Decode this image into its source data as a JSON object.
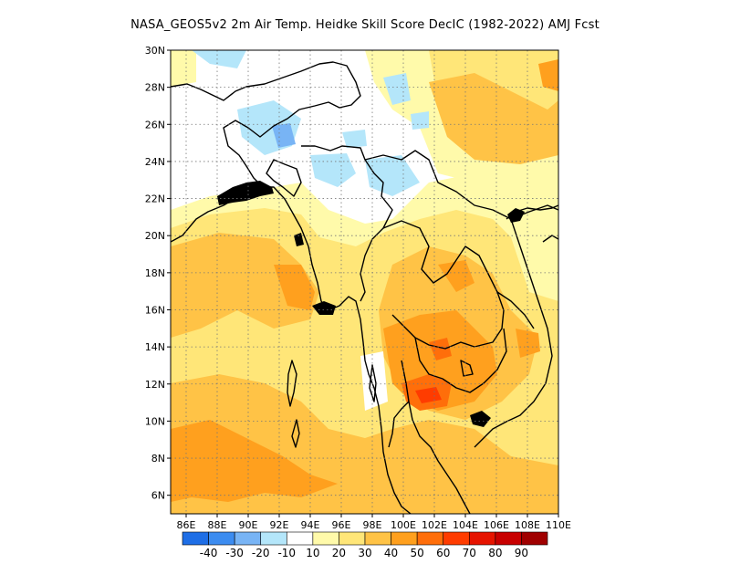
{
  "title": "NASA_GEOS5v2  2m Air Temp. Heidke Skill Score DecIC (1982-2022) AMJ Fcst",
  "map": {
    "lat_labels": [
      "30N",
      "28N",
      "26N",
      "24N",
      "22N",
      "20N",
      "18N",
      "16N",
      "14N",
      "12N",
      "10N",
      "8N",
      "6N"
    ],
    "lon_labels": [
      "86E",
      "88E",
      "90E",
      "92E",
      "94E",
      "96E",
      "98E",
      "100E",
      "102E",
      "104E",
      "106E",
      "108E",
      "110E"
    ],
    "lon_range": [
      85,
      110
    ],
    "lat_range": [
      5,
      30
    ],
    "grid": "dotted"
  },
  "colorbar": {
    "labels": [
      "-40",
      "-30",
      "-20",
      "-10",
      "10",
      "20",
      "30",
      "40",
      "50",
      "60",
      "70",
      "80",
      "90"
    ],
    "colors": [
      "#1e6ee6",
      "#3c8cf0",
      "#78b4f5",
      "#b4e6fa",
      "#ffffff",
      "#fffaaa",
      "#ffe678",
      "#ffc346",
      "#ffa01e",
      "#ff6e0a",
      "#ff3c00",
      "#e61400",
      "#c80000",
      "#a00000"
    ]
  }
}
